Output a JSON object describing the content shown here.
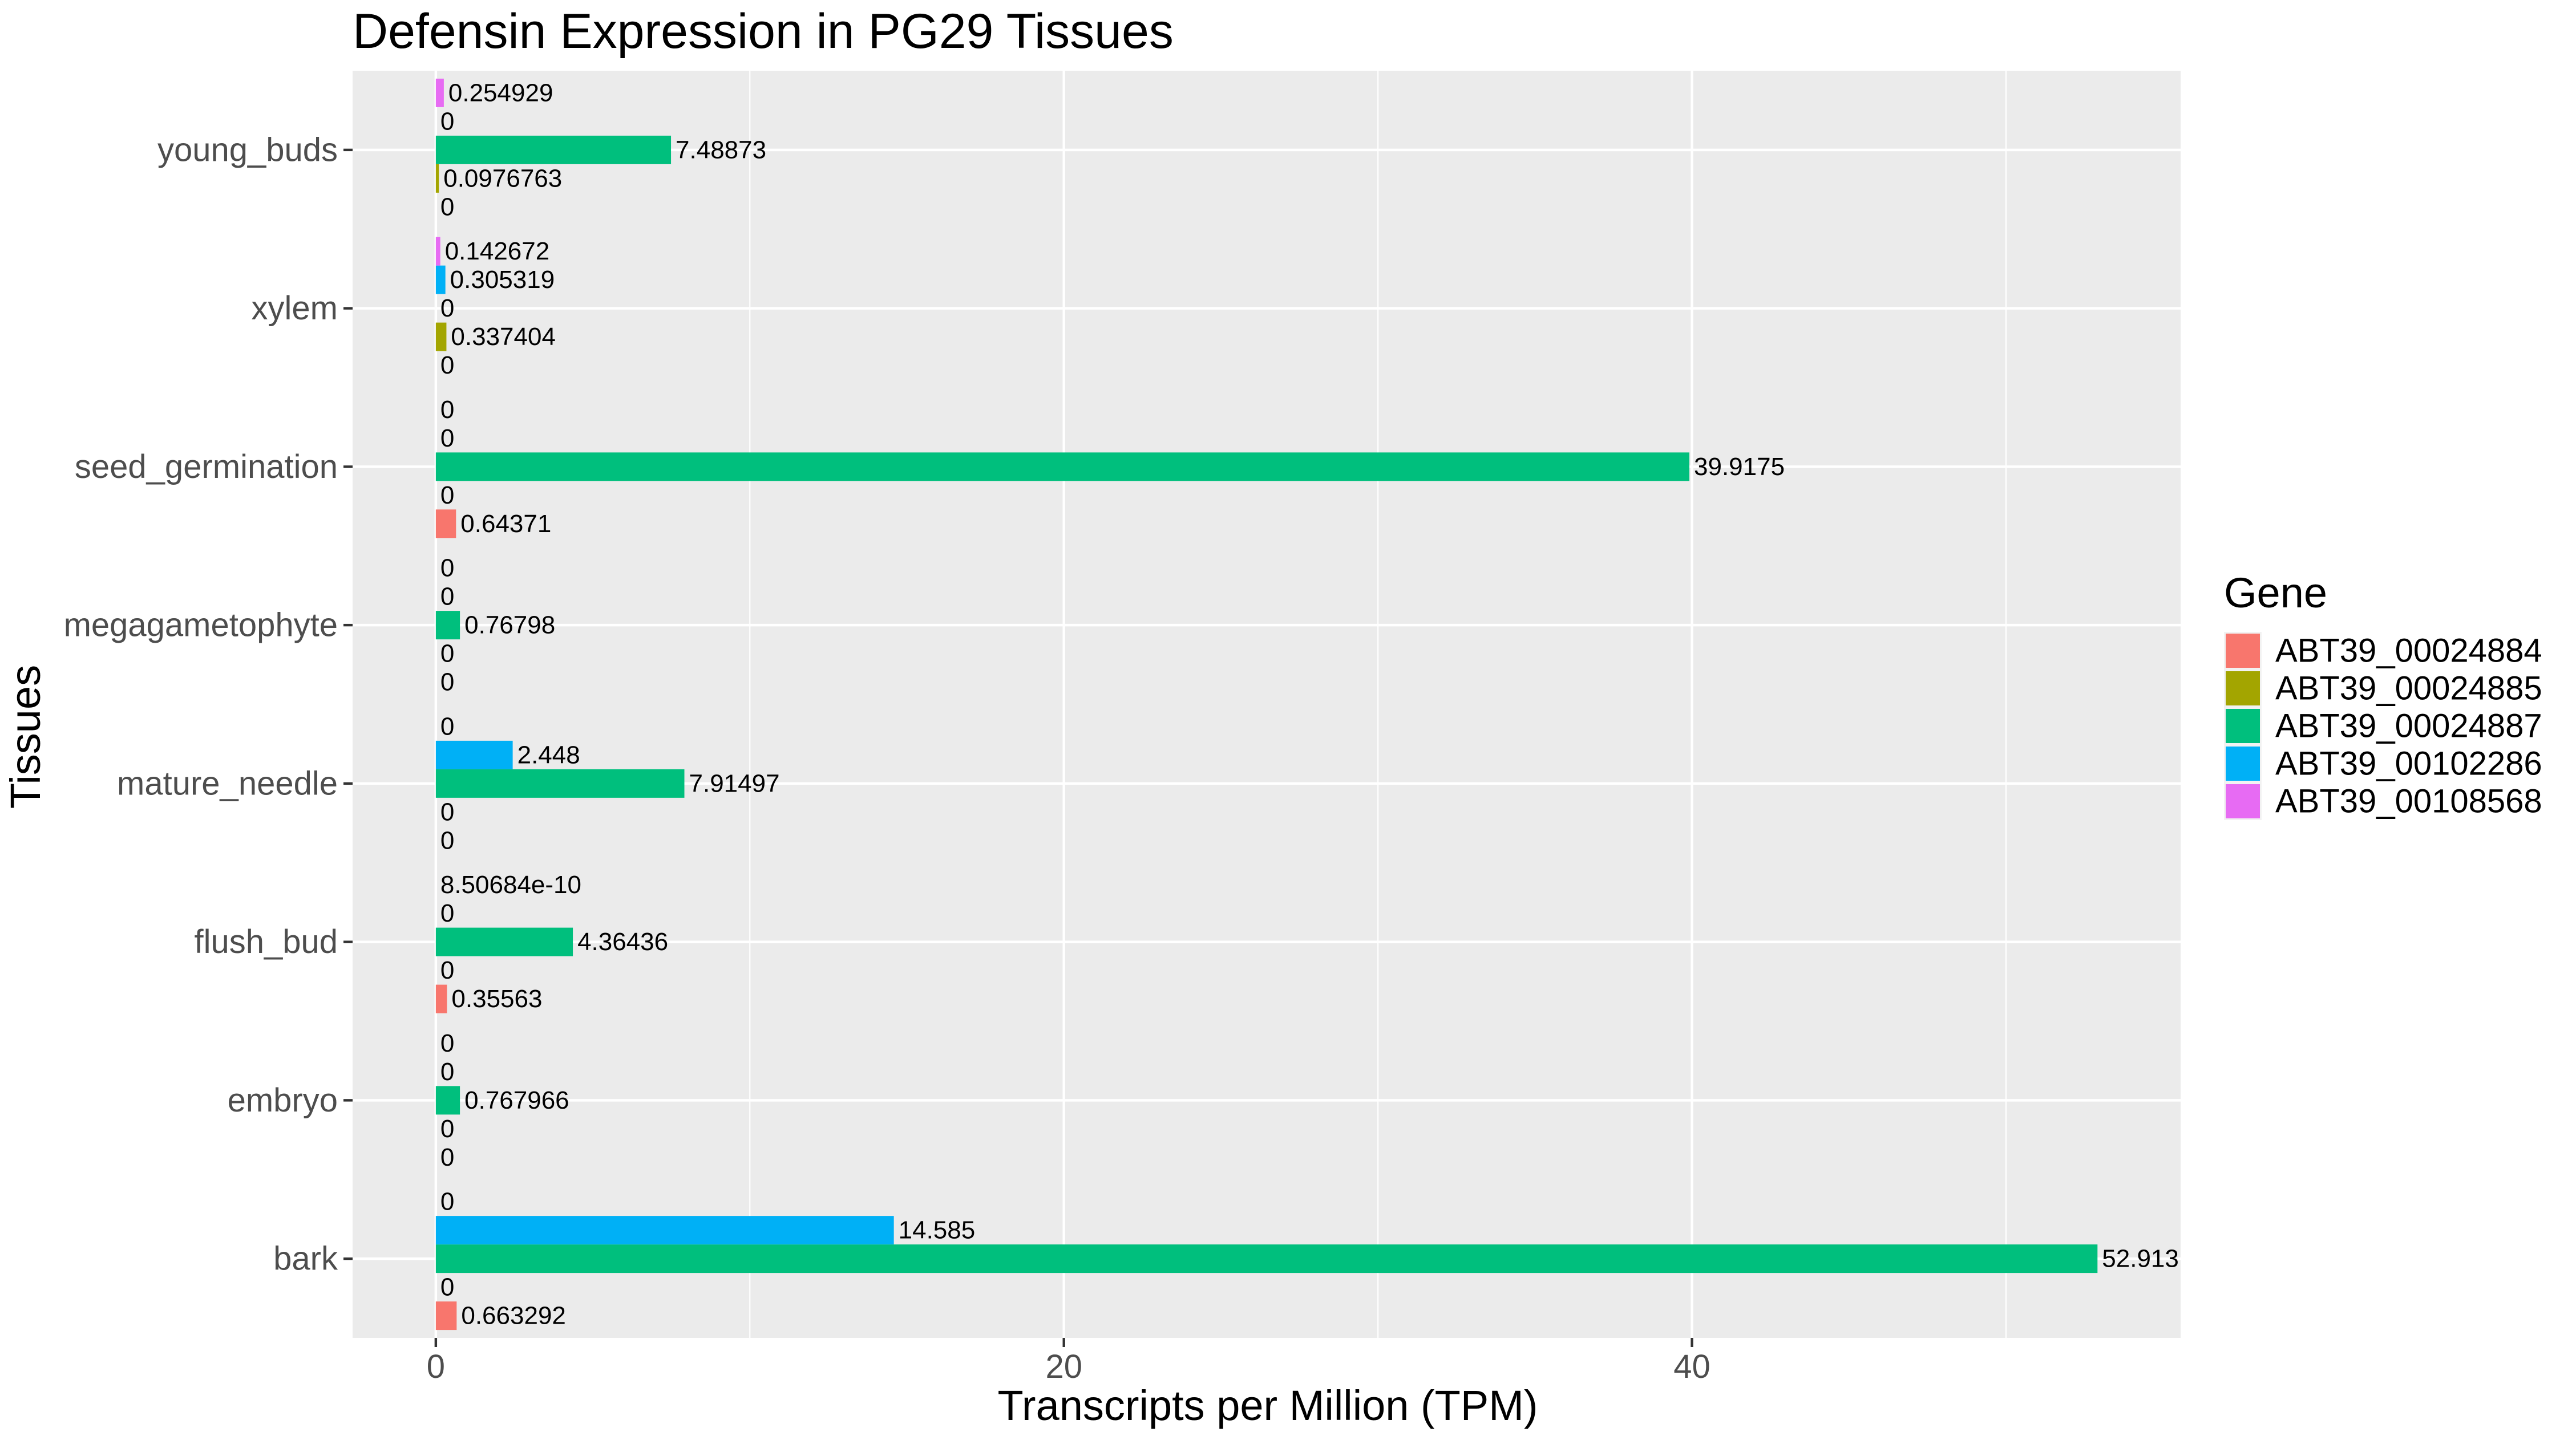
{
  "chart_data": {
    "type": "bar",
    "orientation": "horizontal",
    "title": "Defensin Expression in PG29 Tissues",
    "xlabel": "Transcripts per Million (TPM)",
    "ylabel": "Tissues",
    "xlim": [
      -2.65,
      55.56
    ],
    "x_ticks": [
      0,
      20,
      40
    ],
    "x_tick_labels": [
      "0",
      "20",
      "40"
    ],
    "categories": [
      "bark",
      "embryo",
      "flush_bud",
      "mature_needle",
      "megagametophyte",
      "seed_germination",
      "xylem",
      "young_buds"
    ],
    "legend_title": "Gene",
    "legend_position": "right",
    "grid": true,
    "series": [
      {
        "name": "ABT39_00024884",
        "color": "#F8766D",
        "values": [
          0.663292,
          0,
          0.35563,
          0,
          0,
          0.64371,
          0,
          0
        ],
        "labels": [
          "0.663292",
          "0",
          "0.35563",
          "0",
          "0",
          "0.64371",
          "0",
          "0"
        ]
      },
      {
        "name": "ABT39_00024885",
        "color": "#A3A500",
        "values": [
          0,
          0,
          0,
          0,
          0,
          0,
          0.337404,
          0.0976763
        ],
        "labels": [
          "0",
          "0",
          "0",
          "0",
          "0",
          "0",
          "0.337404",
          "0.0976763"
        ]
      },
      {
        "name": "ABT39_00024887",
        "color": "#00BF7D",
        "values": [
          52.913,
          0.767966,
          4.36436,
          7.91497,
          0.76798,
          39.9175,
          0,
          7.48873
        ],
        "labels": [
          "52.913",
          "0.767966",
          "4.36436",
          "7.91497",
          "0.76798",
          "39.9175",
          "0",
          "7.48873"
        ]
      },
      {
        "name": "ABT39_00102286",
        "color": "#00B0F6",
        "values": [
          14.585,
          0,
          0,
          2.448,
          0,
          0,
          0.305319,
          0
        ],
        "labels": [
          "14.585",
          "0",
          "0",
          "2.448",
          "0",
          "0",
          "0.305319",
          "0"
        ]
      },
      {
        "name": "ABT39_00108568",
        "color": "#E76BF3",
        "values": [
          0,
          0,
          8.50684e-10,
          0,
          0,
          0,
          0.142672,
          0.254929
        ],
        "labels": [
          "0",
          "0",
          "8.50684e-10",
          "0",
          "0",
          "0",
          "0.142672",
          "0.254929"
        ]
      }
    ]
  }
}
